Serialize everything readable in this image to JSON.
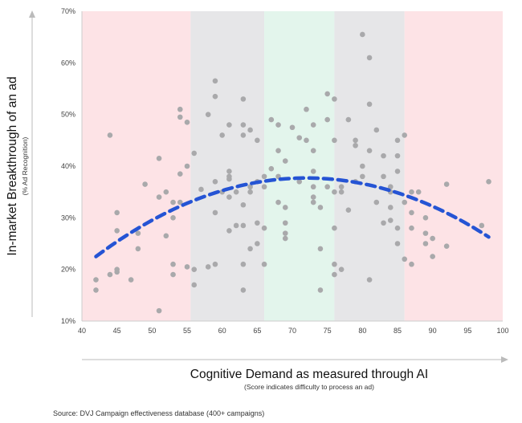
{
  "chart_data": {
    "type": "scatter",
    "xlabel": "Cognitive Demand as measured through AI",
    "xlabel_sub": "(Score indicates difficulty to process an ad)",
    "ylabel": "In-market Breakthrough of an ad",
    "ylabel_sub": "(% Ad Recognition)",
    "source": "Source: DVJ Campaign effectiveness database (400+ campaigns)",
    "xlim": [
      40,
      100
    ],
    "ylim": [
      10,
      70
    ],
    "x_ticks": [
      "40",
      "45",
      "50",
      "55",
      "60",
      "65",
      "70",
      "75",
      "80",
      "85",
      "90",
      "95",
      "100"
    ],
    "y_ticks": [
      "10%",
      "20%",
      "30%",
      "40%",
      "50%",
      "60%",
      "70%"
    ],
    "bands": [
      {
        "from": 40,
        "to": 55.5,
        "color": "#fde3e6"
      },
      {
        "from": 55.5,
        "to": 66,
        "color": "#e6e6e8"
      },
      {
        "from": 66,
        "to": 76,
        "color": "#e3f5ec"
      },
      {
        "from": 76,
        "to": 86,
        "color": "#e6e6e8"
      },
      {
        "from": 86,
        "to": 100,
        "color": "#fde3e6"
      }
    ],
    "point_color": "#a9a9ab",
    "trend_color": "#2554d4",
    "trendline": {
      "type": "quadratic",
      "x_range": [
        42,
        98
      ],
      "peak_x": 72,
      "peak_y": 37.7,
      "a": -0.0169
    },
    "points": [
      [
        42,
        18
      ],
      [
        42,
        16
      ],
      [
        44,
        46
      ],
      [
        45,
        31
      ],
      [
        45,
        27.5
      ],
      [
        45,
        20
      ],
      [
        45,
        19.5
      ],
      [
        44,
        19
      ],
      [
        47,
        18
      ],
      [
        48,
        27
      ],
      [
        48,
        24
      ],
      [
        49,
        36.5
      ],
      [
        51,
        12
      ],
      [
        51,
        34
      ],
      [
        51,
        41.5
      ],
      [
        52,
        35
      ],
      [
        52,
        26.5
      ],
      [
        53,
        33
      ],
      [
        53,
        30
      ],
      [
        53,
        21
      ],
      [
        53,
        19
      ],
      [
        54,
        51
      ],
      [
        54,
        49.5
      ],
      [
        54,
        38.5
      ],
      [
        54,
        33
      ],
      [
        55,
        40
      ],
      [
        55,
        20.5
      ],
      [
        55,
        48.5
      ],
      [
        56,
        42.5
      ],
      [
        56,
        20
      ],
      [
        56,
        17
      ],
      [
        57,
        35.5
      ],
      [
        58,
        50
      ],
      [
        58,
        20.5
      ],
      [
        59,
        56.5
      ],
      [
        59,
        53.5
      ],
      [
        59,
        37
      ],
      [
        59,
        31
      ],
      [
        59,
        21
      ],
      [
        60,
        35
      ],
      [
        60,
        46
      ],
      [
        61,
        48
      ],
      [
        61,
        39
      ],
      [
        61,
        38
      ],
      [
        61,
        37.5
      ],
      [
        61,
        34
      ],
      [
        61,
        27.5
      ],
      [
        62,
        35
      ],
      [
        62,
        28.5
      ],
      [
        63,
        53
      ],
      [
        63,
        48
      ],
      [
        63,
        46
      ],
      [
        63,
        32.5
      ],
      [
        63,
        28.5
      ],
      [
        63,
        21
      ],
      [
        63,
        16
      ],
      [
        64,
        47
      ],
      [
        64,
        36
      ],
      [
        64,
        35
      ],
      [
        64,
        24
      ],
      [
        65,
        37
      ],
      [
        65,
        29
      ],
      [
        65,
        25
      ],
      [
        65,
        45
      ],
      [
        66,
        38
      ],
      [
        66,
        36
      ],
      [
        66,
        21
      ],
      [
        66,
        28
      ],
      [
        67,
        49
      ],
      [
        67,
        39.5
      ],
      [
        68,
        48
      ],
      [
        68,
        43
      ],
      [
        68,
        38
      ],
      [
        68,
        33
      ],
      [
        69,
        41
      ],
      [
        69,
        32
      ],
      [
        69,
        29
      ],
      [
        69,
        27
      ],
      [
        69,
        26
      ],
      [
        70,
        47.5
      ],
      [
        71,
        45.5
      ],
      [
        71,
        37
      ],
      [
        72,
        51
      ],
      [
        72,
        45
      ],
      [
        73,
        48
      ],
      [
        73,
        43
      ],
      [
        73,
        39
      ],
      [
        73,
        36
      ],
      [
        73,
        34
      ],
      [
        73,
        33
      ],
      [
        74,
        32
      ],
      [
        74,
        24
      ],
      [
        74,
        16
      ],
      [
        75,
        54
      ],
      [
        75,
        49
      ],
      [
        75,
        36
      ],
      [
        76,
        53
      ],
      [
        76,
        45
      ],
      [
        76,
        35
      ],
      [
        76,
        28
      ],
      [
        76,
        21
      ],
      [
        76,
        19
      ],
      [
        77,
        36
      ],
      [
        77,
        35
      ],
      [
        77,
        20
      ],
      [
        78,
        49
      ],
      [
        78,
        31.5
      ],
      [
        79,
        45
      ],
      [
        79,
        44
      ],
      [
        79,
        37
      ],
      [
        80,
        65.5
      ],
      [
        80,
        40
      ],
      [
        80,
        38
      ],
      [
        81,
        61
      ],
      [
        81,
        52
      ],
      [
        81,
        43
      ],
      [
        81,
        18
      ],
      [
        82,
        47
      ],
      [
        82,
        33
      ],
      [
        83,
        42
      ],
      [
        83,
        38
      ],
      [
        83,
        29
      ],
      [
        84,
        36
      ],
      [
        84,
        35
      ],
      [
        84,
        32
      ],
      [
        84,
        29.5
      ],
      [
        85,
        42
      ],
      [
        85,
        39
      ],
      [
        85,
        28
      ],
      [
        85,
        25
      ],
      [
        85,
        45
      ],
      [
        86,
        46
      ],
      [
        86,
        33
      ],
      [
        86,
        22
      ],
      [
        87,
        35
      ],
      [
        87,
        31
      ],
      [
        87,
        28
      ],
      [
        87,
        21
      ],
      [
        88,
        35
      ],
      [
        89,
        30
      ],
      [
        89,
        27
      ],
      [
        89,
        25
      ],
      [
        90,
        26
      ],
      [
        90,
        22.5
      ],
      [
        92,
        36.5
      ],
      [
        92,
        24.5
      ],
      [
        97,
        28.5
      ],
      [
        98,
        37
      ]
    ]
  }
}
